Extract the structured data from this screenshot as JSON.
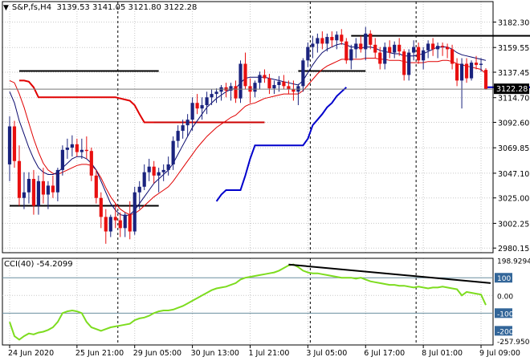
{
  "header": {
    "symbol": "S&P,fs,H4",
    "values": "3139.53 3141.05 3121.80 3122.28"
  },
  "chart_data": {
    "type": "candlestick",
    "timeframe": "H4",
    "grid": true,
    "price_axis": {
      "ylim": [
        2976,
        3192
      ],
      "ticks": [
        "3182.30",
        "3159.55",
        "3137.45",
        "3114.70",
        "3092.60",
        "3069.85",
        "3047.10",
        "3025.00",
        "3002.25",
        "2980.15"
      ],
      "tick_values": [
        3182.3,
        3159.55,
        3137.45,
        3114.7,
        3092.6,
        3069.85,
        3047.1,
        3025.0,
        3002.25,
        2980.15
      ],
      "current_price": "3122.28"
    },
    "x_labels": [
      {
        "text": "24 Jun 2020",
        "bar": 0
      },
      {
        "text": "25 Jun 21:00",
        "bar": 14
      },
      {
        "text": "29 Jun 05:00",
        "bar": 26
      },
      {
        "text": "30 Jun 13:00",
        "bar": 38
      },
      {
        "text": "1 Jul 21:00",
        "bar": 50
      },
      {
        "text": "3 Jul 05:00",
        "bar": 62
      },
      {
        "text": "6 Jul 17:00",
        "bar": 74
      },
      {
        "text": "8 Jul 01:00",
        "bar": 86
      },
      {
        "text": "9 Jul 09:00",
        "bar": 98
      }
    ],
    "separators": [
      23,
      63,
      85
    ],
    "candles": [
      [
        3055,
        3098,
        3040,
        3089
      ],
      [
        3089,
        3094,
        3052,
        3058
      ],
      [
        3058,
        3072,
        3018,
        3025
      ],
      [
        3025,
        3048,
        3015,
        3030
      ],
      [
        3030,
        3048,
        3020,
        3042
      ],
      [
        3042,
        3050,
        3010,
        3018
      ],
      [
        3018,
        3045,
        3010,
        3040
      ],
      [
        3040,
        3052,
        3020,
        3028
      ],
      [
        3028,
        3040,
        3015,
        3036
      ],
      [
        3036,
        3045,
        3025,
        3030
      ],
      [
        3030,
        3052,
        3022,
        3050
      ],
      [
        3050,
        3072,
        3045,
        3068
      ],
      [
        3068,
        3078,
        3060,
        3070
      ],
      [
        3070,
        3081,
        3062,
        3073
      ],
      [
        3073,
        3078,
        3062,
        3066
      ],
      [
        3066,
        3078,
        3060,
        3068
      ],
      [
        3068,
        3080,
        3060,
        3067
      ],
      [
        3067,
        3070,
        3040,
        3045
      ],
      [
        3045,
        3050,
        3020,
        3025
      ],
      [
        3025,
        3030,
        2998,
        3008
      ],
      [
        3008,
        3015,
        2984,
        2995
      ],
      [
        2995,
        3010,
        2990,
        3008
      ],
      [
        3008,
        3020,
        2998,
        3005
      ],
      [
        3005,
        3012,
        2990,
        2998
      ],
      [
        2998,
        3012,
        2990,
        3010
      ],
      [
        3010,
        3022,
        2988,
        2995
      ],
      [
        2995,
        3035,
        2992,
        3030
      ],
      [
        3030,
        3040,
        3015,
        3035
      ],
      [
        3035,
        3055,
        3032,
        3048
      ],
      [
        3048,
        3060,
        3040,
        3053
      ],
      [
        3053,
        3058,
        3038,
        3045
      ],
      [
        3045,
        3052,
        3030,
        3048
      ],
      [
        3048,
        3055,
        3040,
        3050
      ],
      [
        3050,
        3062,
        3045,
        3055
      ],
      [
        3055,
        3080,
        3050,
        3076
      ],
      [
        3076,
        3090,
        3070,
        3085
      ],
      [
        3085,
        3095,
        3078,
        3090
      ],
      [
        3090,
        3100,
        3080,
        3095
      ],
      [
        3095,
        3115,
        3085,
        3110
      ],
      [
        3110,
        3118,
        3100,
        3105
      ],
      [
        3105,
        3115,
        3095,
        3108
      ],
      [
        3108,
        3120,
        3100,
        3115
      ],
      [
        3115,
        3122,
        3108,
        3118
      ],
      [
        3118,
        3123,
        3110,
        3120
      ],
      [
        3120,
        3126,
        3112,
        3124
      ],
      [
        3124,
        3128,
        3115,
        3121
      ],
      [
        3121,
        3128,
        3112,
        3125
      ],
      [
        3125,
        3130,
        3110,
        3114
      ],
      [
        3114,
        3148,
        3110,
        3145
      ],
      [
        3145,
        3155,
        3122,
        3125
      ],
      [
        3125,
        3132,
        3110,
        3120
      ],
      [
        3120,
        3130,
        3115,
        3128
      ],
      [
        3128,
        3138,
        3122,
        3135
      ],
      [
        3135,
        3140,
        3128,
        3132
      ],
      [
        3132,
        3136,
        3118,
        3123
      ],
      [
        3123,
        3130,
        3118,
        3126
      ],
      [
        3126,
        3134,
        3120,
        3129
      ],
      [
        3129,
        3135,
        3122,
        3125
      ],
      [
        3125,
        3130,
        3118,
        3122
      ],
      [
        3122,
        3130,
        3112,
        3120
      ],
      [
        3120,
        3127,
        3108,
        3125
      ],
      [
        3125,
        3150,
        3120,
        3148
      ],
      [
        3148,
        3164,
        3142,
        3160
      ],
      [
        3160,
        3170,
        3150,
        3163
      ],
      [
        3163,
        3172,
        3155,
        3168
      ],
      [
        3168,
        3174,
        3158,
        3163
      ],
      [
        3163,
        3172,
        3156,
        3169
      ],
      [
        3169,
        3174,
        3160,
        3166
      ],
      [
        3166,
        3174,
        3158,
        3171
      ],
      [
        3171,
        3176,
        3162,
        3165
      ],
      [
        3165,
        3168,
        3145,
        3148
      ],
      [
        3148,
        3162,
        3140,
        3158
      ],
      [
        3158,
        3168,
        3150,
        3163
      ],
      [
        3163,
        3170,
        3155,
        3158
      ],
      [
        3158,
        3178,
        3148,
        3172
      ],
      [
        3172,
        3175,
        3158,
        3162
      ],
      [
        3162,
        3168,
        3150,
        3155
      ],
      [
        3155,
        3160,
        3140,
        3145
      ],
      [
        3145,
        3164,
        3140,
        3160
      ],
      [
        3160,
        3166,
        3150,
        3155
      ],
      [
        3155,
        3165,
        3150,
        3162
      ],
      [
        3162,
        3168,
        3152,
        3156
      ],
      [
        3156,
        3158,
        3130,
        3135
      ],
      [
        3135,
        3158,
        3130,
        3155
      ],
      [
        3155,
        3166,
        3148,
        3160
      ],
      [
        3160,
        3164,
        3145,
        3148
      ],
      [
        3148,
        3160,
        3140,
        3157
      ],
      [
        3157,
        3166,
        3150,
        3163
      ],
      [
        3163,
        3168,
        3152,
        3158
      ],
      [
        3158,
        3164,
        3150,
        3161
      ],
      [
        3161,
        3164,
        3152,
        3160
      ],
      [
        3160,
        3163,
        3150,
        3158
      ],
      [
        3158,
        3162,
        3140,
        3145
      ],
      [
        3145,
        3150,
        3125,
        3130
      ],
      [
        3130,
        3150,
        3105,
        3145
      ],
      [
        3145,
        3150,
        3128,
        3132
      ],
      [
        3132,
        3148,
        3130,
        3146
      ],
      [
        3146,
        3152,
        3140,
        3144
      ],
      [
        3144,
        3150,
        3138,
        3145
      ],
      [
        3139.53,
        3141.05,
        3121.8,
        3122.28
      ]
    ],
    "lines": [
      {
        "color": "#000000",
        "points": [
          [
            2,
            3138.5
          ],
          [
            31,
            3138.5
          ]
        ]
      },
      {
        "color": "#000000",
        "points": [
          [
            60,
            3138.5
          ],
          [
            74,
            3138.5
          ]
        ]
      },
      {
        "color": "#000000",
        "points": [
          [
            84,
            3170
          ],
          [
            118,
            3170
          ]
        ]
      },
      {
        "color": "#0000cc",
        "points": [
          [
            99,
            3124
          ],
          [
            127,
            3124
          ]
        ]
      },
      {
        "color": "#000000",
        "points": [
          [
            0,
            3018
          ],
          [
            31,
            3018
          ]
        ]
      },
      {
        "color": "#cc0000",
        "points": [
          [
            28,
            3092.6
          ],
          [
            53,
            3092.6
          ]
        ]
      },
      {
        "color": "#000000",
        "points": [
          [
            71,
            3170
          ],
          [
            84,
            3170
          ]
        ]
      }
    ],
    "red_ma": [
      3130,
      3128,
      3118,
      3106,
      3092,
      3078,
      3066,
      3056,
      3050,
      3047,
      3046,
      3048,
      3050,
      3052,
      3054,
      3055,
      3055,
      3054,
      3050,
      3043,
      3034,
      3026,
      3020,
      3015,
      3012,
      3010,
      3011,
      3014,
      3018,
      3022,
      3026,
      3029,
      3032,
      3035,
      3040,
      3046,
      3052,
      3058,
      3064,
      3070,
      3075,
      3080,
      3084,
      3088,
      3091,
      3094,
      3097,
      3099,
      3103,
      3107,
      3109,
      3110,
      3112,
      3114,
      3115,
      3116,
      3117,
      3118,
      3118,
      3118,
      3118,
      3121,
      3126,
      3131,
      3136,
      3140,
      3143,
      3145,
      3147,
      3149,
      3149,
      3149,
      3149,
      3149,
      3150,
      3150,
      3150,
      3149,
      3149,
      3148,
      3148,
      3148,
      3147,
      3146,
      3146,
      3146,
      3146,
      3147,
      3147,
      3147,
      3148,
      3148,
      3147,
      3145,
      3144,
      3143,
      3142,
      3141,
      3140,
      3136
    ],
    "blue_ma": [
      3120,
      3110,
      3094,
      3082,
      3070,
      3060,
      3052,
      3048,
      3046,
      3046,
      3048,
      3052,
      3056,
      3060,
      3062,
      3062,
      3060,
      3056,
      3050,
      3040,
      3030,
      3020,
      3014,
      3010,
      3009,
      3010,
      3014,
      3020,
      3026,
      3032,
      3038,
      3042,
      3046,
      3050,
      3056,
      3064,
      3072,
      3080,
      3088,
      3094,
      3100,
      3106,
      3110,
      3114,
      3117,
      3120,
      3122,
      3123,
      3128,
      3132,
      3133,
      3133,
      3133,
      3133,
      3132,
      3131,
      3130,
      3129,
      3128,
      3127,
      3126,
      3130,
      3137,
      3144,
      3150,
      3155,
      3158,
      3160,
      3162,
      3163,
      3162,
      3160,
      3160,
      3159,
      3160,
      3160,
      3159,
      3157,
      3156,
      3155,
      3154,
      3154,
      3152,
      3152,
      3152,
      3153,
      3154,
      3156,
      3158,
      3160,
      3160,
      3160,
      3158,
      3155,
      3153,
      3152,
      3151,
      3150,
      3149,
      3148
    ],
    "red_stop": [
      [
        2,
        3130
      ],
      [
        3,
        3130
      ],
      [
        4,
        3129
      ],
      [
        5,
        3124
      ],
      [
        6,
        3115
      ],
      [
        7,
        3115
      ],
      [
        8,
        3115
      ],
      [
        9,
        3115
      ],
      [
        10,
        3115
      ],
      [
        11,
        3115
      ],
      [
        12,
        3115
      ],
      [
        13,
        3115
      ],
      [
        14,
        3115
      ],
      [
        15,
        3115
      ],
      [
        16,
        3115
      ],
      [
        17,
        3115
      ],
      [
        18,
        3115
      ],
      [
        19,
        3115
      ],
      [
        20,
        3115
      ],
      [
        21,
        3115
      ],
      [
        22,
        3115
      ],
      [
        23,
        3114
      ],
      [
        24,
        3113
      ],
      [
        25,
        3112
      ],
      [
        26,
        3108
      ],
      [
        27,
        3100
      ],
      [
        28,
        3092.6
      ],
      [
        29,
        3092.6
      ],
      [
        30,
        3092.6
      ]
    ],
    "blue_stop": [
      [
        43,
        3022
      ],
      [
        44,
        3028
      ],
      [
        45,
        3032
      ],
      [
        46,
        3032
      ],
      [
        47,
        3032
      ],
      [
        48,
        3032
      ],
      [
        49,
        3045
      ],
      [
        50,
        3060
      ],
      [
        51,
        3072
      ],
      [
        52,
        3072
      ],
      [
        53,
        3072
      ],
      [
        54,
        3072
      ],
      [
        55,
        3072
      ],
      [
        56,
        3072
      ],
      [
        57,
        3072
      ],
      [
        58,
        3072
      ],
      [
        59,
        3072
      ],
      [
        60,
        3072
      ],
      [
        61,
        3072
      ],
      [
        62,
        3078
      ],
      [
        63,
        3090
      ],
      [
        64,
        3095
      ],
      [
        65,
        3100
      ],
      [
        66,
        3106
      ],
      [
        67,
        3110
      ],
      [
        68,
        3116
      ],
      [
        69,
        3120
      ],
      [
        70,
        3124
      ]
    ],
    "cci": {
      "label": "CCI(40) -54.2099",
      "ylim": [
        -280,
        210
      ],
      "ticks": [
        "198.9294",
        "100",
        "0.00",
        "-100",
        "-200",
        "-257.9503"
      ],
      "tick_values": [
        198.9294,
        100,
        0,
        -100,
        -200,
        -257.9503
      ],
      "values": [
        -150,
        -230,
        -250,
        -230,
        -215,
        -220,
        -210,
        -205,
        -195,
        -180,
        -150,
        -100,
        -90,
        -85,
        -90,
        -100,
        -150,
        -180,
        -190,
        -200,
        -190,
        -180,
        -175,
        -170,
        -165,
        -160,
        -140,
        -130,
        -125,
        -115,
        -100,
        -90,
        -85,
        -85,
        -80,
        -70,
        -60,
        -45,
        -30,
        -15,
        0,
        15,
        30,
        40,
        45,
        50,
        60,
        70,
        90,
        100,
        105,
        110,
        115,
        120,
        125,
        130,
        140,
        155,
        170,
        175,
        160,
        140,
        130,
        125,
        125,
        120,
        115,
        110,
        105,
        100,
        100,
        100,
        95,
        100,
        90,
        80,
        75,
        70,
        65,
        60,
        60,
        55,
        55,
        50,
        45,
        50,
        45,
        40,
        45,
        45,
        50,
        45,
        40,
        35,
        0,
        20,
        15,
        10,
        5,
        -54.2099
      ],
      "trendline": {
        "color": "#000000",
        "points": [
          [
            58,
            175
          ],
          [
            100,
            70
          ]
        ]
      }
    }
  }
}
